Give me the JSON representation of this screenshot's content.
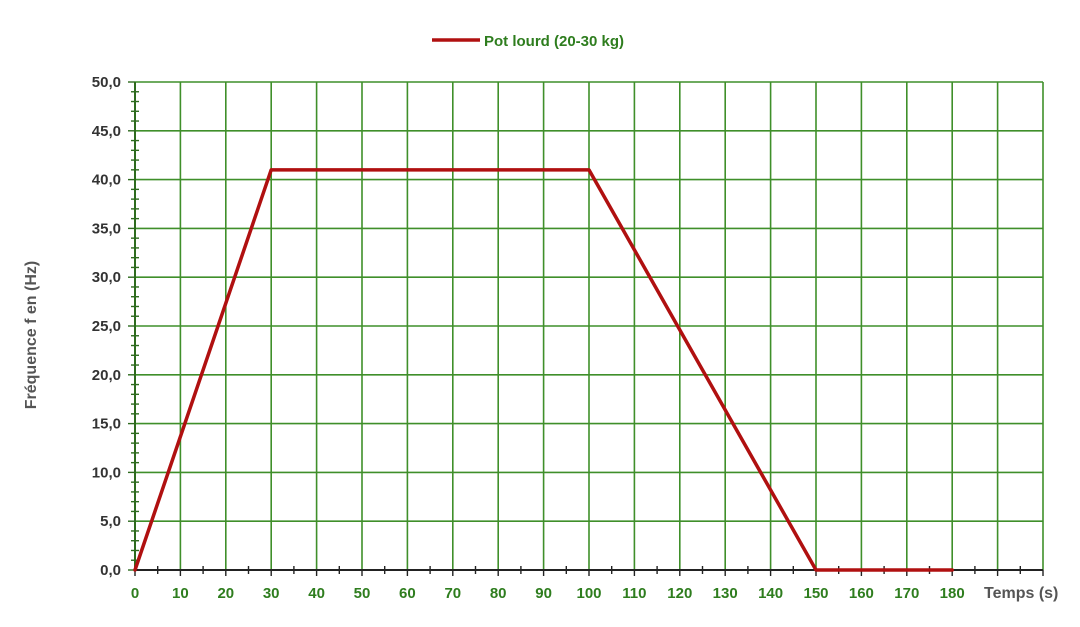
{
  "chart_data": {
    "type": "line",
    "legend_position": "top-center",
    "grid": true,
    "xlabel": "Temps (s)",
    "ylabel": "Fréquence f en (Hz)",
    "xlim": [
      0,
      200
    ],
    "ylim": [
      0,
      50
    ],
    "x_ticks": [
      "0",
      "10",
      "20",
      "30",
      "40",
      "50",
      "60",
      "70",
      "80",
      "90",
      "100",
      "110",
      "120",
      "130",
      "140",
      "150",
      "160",
      "170",
      "180"
    ],
    "y_ticks": [
      "0,0",
      "5,0",
      "10,0",
      "15,0",
      "20,0",
      "25,0",
      "30,0",
      "35,0",
      "40,0",
      "45,0",
      "50,0"
    ],
    "series": [
      {
        "name": "Pot lourd (20-30 kg)",
        "color": "#b01010",
        "x": [
          0,
          30,
          100,
          150,
          180
        ],
        "y": [
          0,
          41,
          41,
          0,
          0
        ]
      }
    ],
    "colors": {
      "grid": "#3f8f2a",
      "axis": "#2e6b1e",
      "x_tick_labels": "#2e7d1e",
      "y_tick_labels": "#333333"
    }
  }
}
